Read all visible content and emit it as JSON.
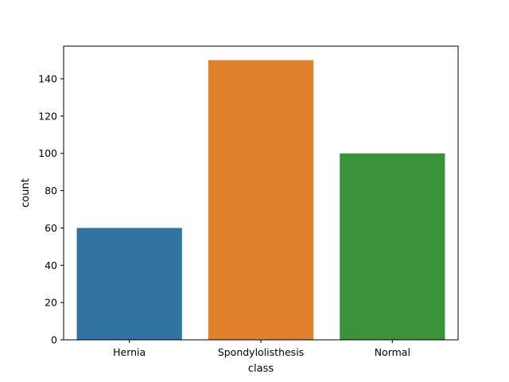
{
  "chart_data": {
    "type": "bar",
    "title": "",
    "xlabel": "class",
    "ylabel": "count",
    "categories": [
      "Hernia",
      "Spondylolisthesis",
      "Normal"
    ],
    "values": [
      60,
      150,
      100
    ],
    "colors": [
      "#3274a1",
      "#e1812c",
      "#3a923a"
    ],
    "ylim": [
      0,
      157.5
    ],
    "yticks": [
      0,
      20,
      40,
      60,
      80,
      100,
      120,
      140
    ],
    "grid": false,
    "legend": "none"
  }
}
